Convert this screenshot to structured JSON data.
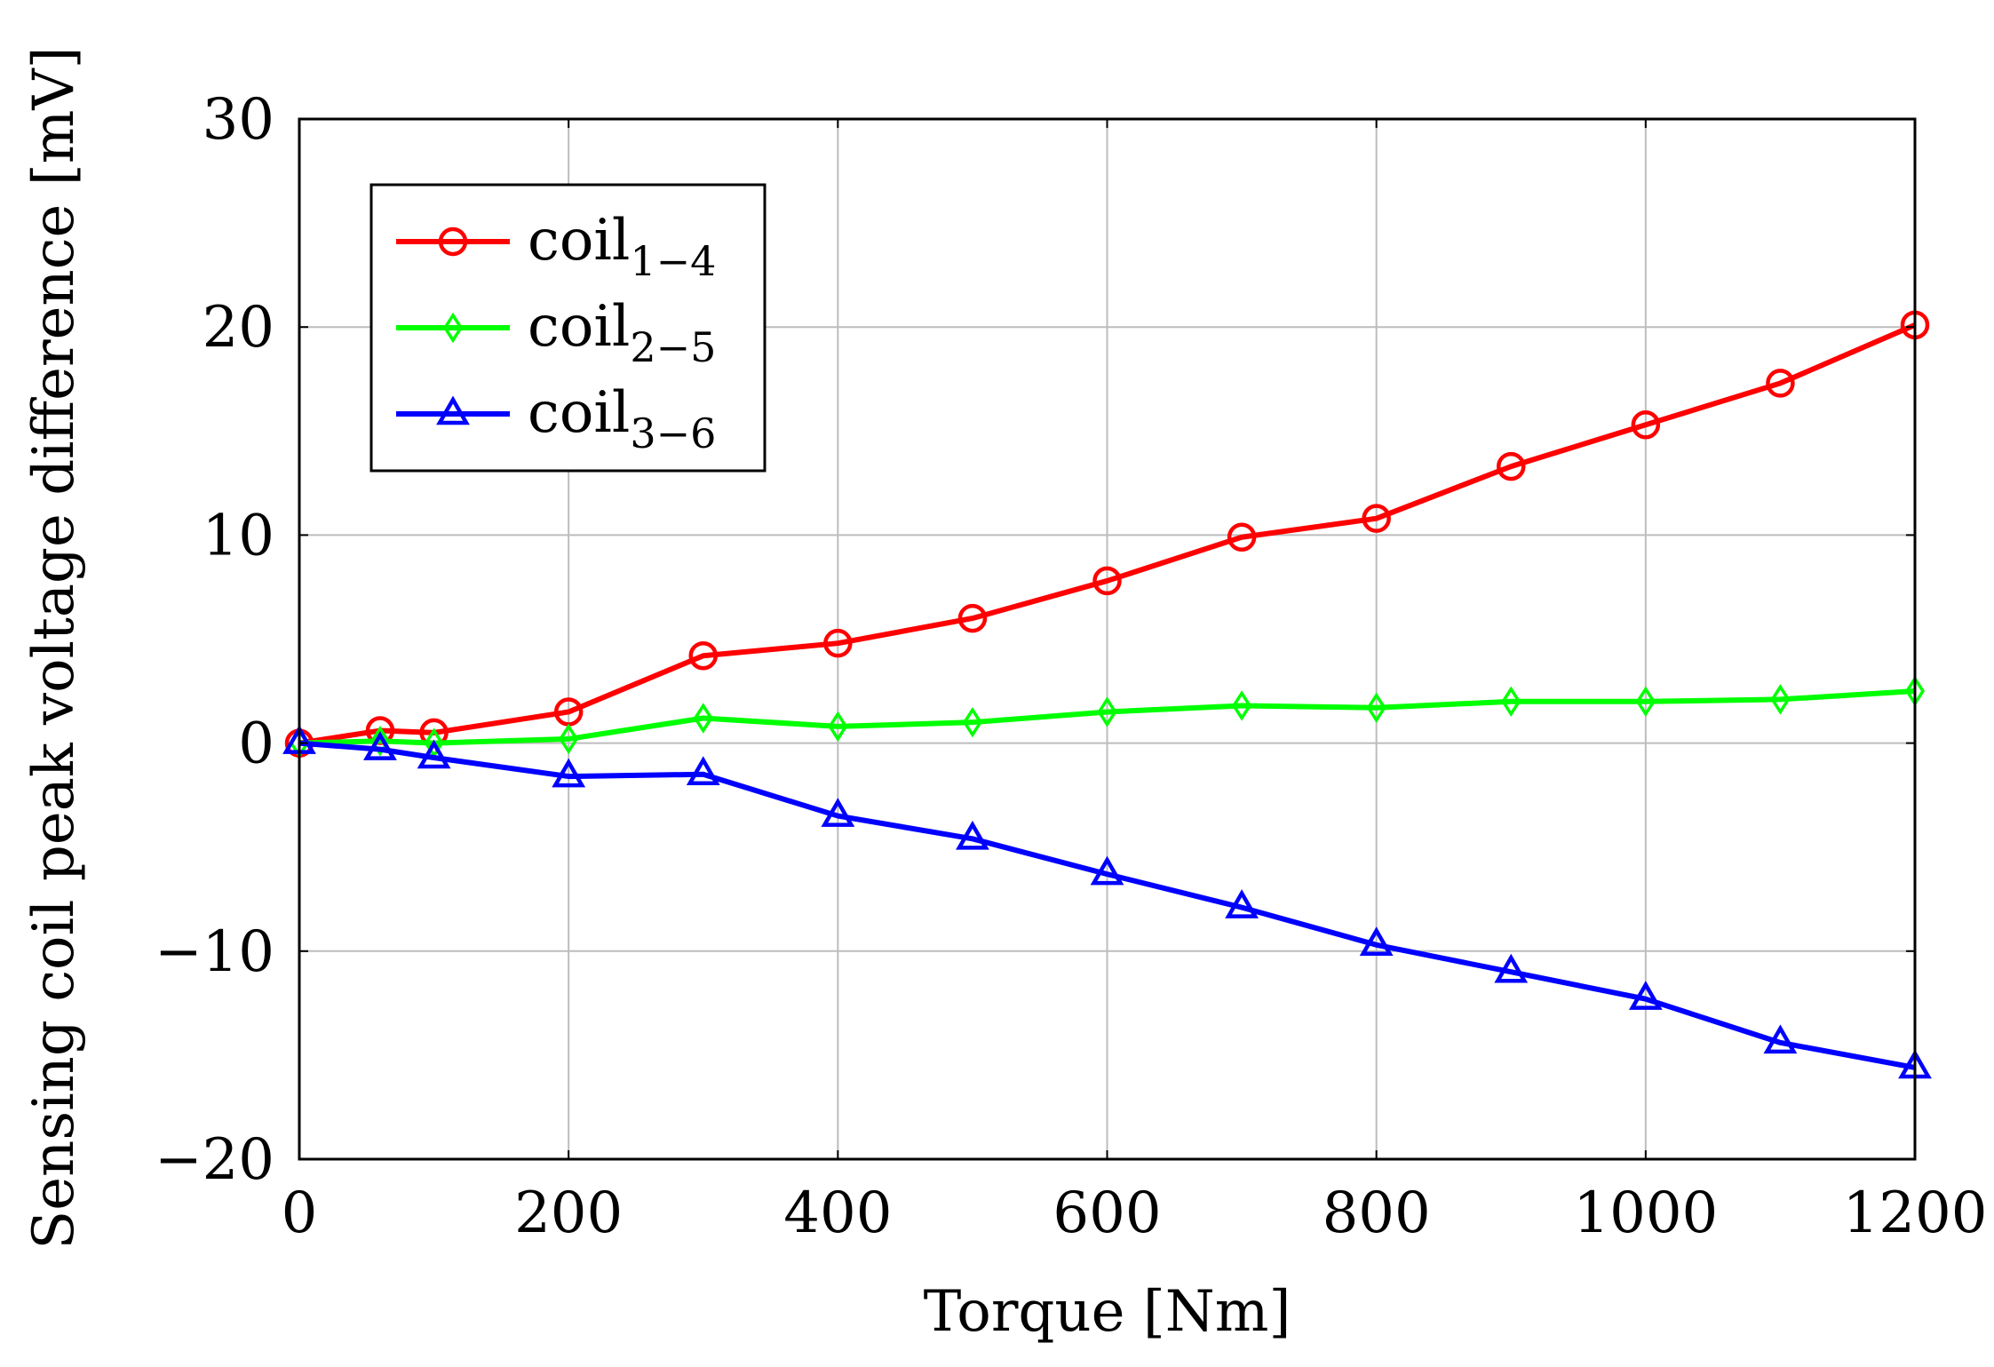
{
  "chart_data": {
    "type": "line",
    "title": "",
    "xlabel": "Torque [Nm]",
    "ylabel": "Sensing coil peak voltage difference [mV]",
    "xlim": [
      0,
      1200
    ],
    "ylim": [
      -20,
      30
    ],
    "xticks": [
      0,
      200,
      400,
      600,
      800,
      1000,
      1200
    ],
    "yticks": [
      -20,
      -10,
      0,
      10,
      20,
      30
    ],
    "xtick_labels": [
      "0",
      "200",
      "400",
      "600",
      "800",
      "1000",
      "1200"
    ],
    "ytick_labels": [
      "−20",
      "−10",
      "0",
      "10",
      "20",
      "30"
    ],
    "grid": true,
    "legend_position": "top-left",
    "x": [
      0,
      60,
      100,
      200,
      300,
      400,
      500,
      600,
      700,
      800,
      900,
      1000,
      1100,
      1200
    ],
    "series": [
      {
        "name": "coil",
        "subscript": "1−4",
        "color": "#ff0000",
        "marker": "circle",
        "values": [
          0.0,
          0.6,
          0.5,
          1.5,
          4.2,
          4.8,
          6.0,
          7.8,
          9.9,
          10.8,
          13.3,
          15.3,
          17.3,
          20.1
        ]
      },
      {
        "name": "coil",
        "subscript": "2−5",
        "color": "#00ff00",
        "marker": "diamond",
        "values": [
          0.0,
          0.1,
          0.0,
          0.2,
          1.2,
          0.8,
          1.0,
          1.5,
          1.8,
          1.7,
          2.0,
          2.0,
          2.1,
          2.5
        ]
      },
      {
        "name": "coil",
        "subscript": "3−6",
        "color": "#0000ff",
        "marker": "triangle",
        "values": [
          0.0,
          -0.3,
          -0.7,
          -1.6,
          -1.5,
          -3.5,
          -4.6,
          -6.3,
          -7.9,
          -9.7,
          -11.0,
          -12.3,
          -14.4,
          -15.6
        ]
      }
    ]
  }
}
